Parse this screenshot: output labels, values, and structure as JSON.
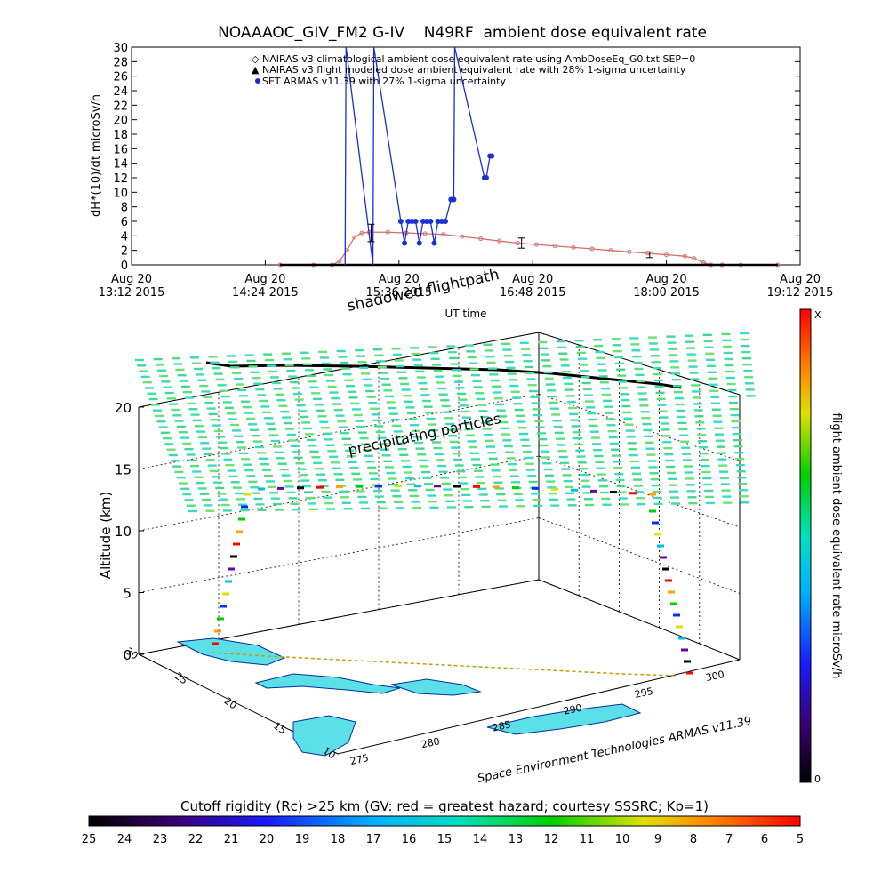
{
  "chart_data": [
    {
      "type": "line",
      "title": "NOAAAOC_GIV_FM2 G-IV    N49RF  ambient dose equivalent rate",
      "ylabel": "dH*(10)/dt microSv/h",
      "xlabel": "UT time",
      "ylim": [
        0,
        30
      ],
      "yticks": [
        "0",
        "2",
        "4",
        "6",
        "8",
        "10",
        "12",
        "14",
        "16",
        "18",
        "20",
        "22",
        "24",
        "26",
        "28",
        "30"
      ],
      "xticks": [
        {
          "t": 792,
          "line1": "Aug 20",
          "line2": "13:12 2015"
        },
        {
          "t": 864,
          "line1": "Aug 20",
          "line2": "14:24 2015"
        },
        {
          "t": 936,
          "line1": "Aug 20",
          "line2": "15:36 2015"
        },
        {
          "t": 1008,
          "line1": "Aug 20",
          "line2": "16:48 2015"
        },
        {
          "t": 1080,
          "line1": "Aug 20",
          "line2": "18:00 2015"
        },
        {
          "t": 1152,
          "line1": "Aug 20",
          "line2": "19:12 2015"
        }
      ],
      "xlim": [
        792,
        1152
      ],
      "legend": [
        "NAIRAS v3 climatological ambient dose equivalent rate using AmbDoseEq_G0.txt SEP=0",
        "NAIRAS v3 flight modeled dose ambient equivalent rate with 28% 1-sigma uncertainty",
        "SET ARMAS v11.39 with 27% 1-sigma uncertainty"
      ],
      "legend_position": "top-right",
      "series": [
        {
          "name": "NAIRAS v3 climatological ambient dose equivalent rate using AmbDoseEq_G0.txt SEP=0",
          "color": "#d47070",
          "x": [
            872,
            890,
            900,
            904,
            908,
            912,
            916,
            920,
            930,
            940,
            950,
            960,
            970,
            980,
            990,
            1000,
            1010,
            1020,
            1030,
            1040,
            1050,
            1060,
            1070,
            1080,
            1090,
            1095,
            1100,
            1104,
            1110,
            1120,
            1140
          ],
          "y": [
            0,
            0,
            0,
            0.5,
            2,
            3.8,
            4.4,
            4.5,
            4.5,
            4.4,
            4.3,
            4.2,
            3.9,
            3.6,
            3.3,
            3.0,
            2.8,
            2.6,
            2.4,
            2.2,
            2.0,
            1.8,
            1.6,
            1.4,
            1.2,
            0.9,
            0.3,
            0,
            0,
            0,
            0
          ]
        },
        {
          "name": "NAIRAS v3 flight modeled dose ambient equivalent rate with 28% 1-sigma uncertainty",
          "color": "#000000",
          "x": [
            872,
            890,
            910,
            930,
            950,
            970,
            990,
            1010,
            1030,
            1050,
            1070,
            1090,
            1110,
            1130,
            1140
          ],
          "y": [
            0,
            0,
            0,
            0,
            0,
            0,
            0,
            0,
            0,
            0,
            0,
            0,
            0,
            0,
            0
          ]
        },
        {
          "name": "SET ARMAS v11.39 with 27% 1-sigma uncertainty",
          "color": "#1a2fd6",
          "x": [
            907,
            907.5,
            922,
            922.5,
            937,
            939,
            941,
            943,
            945,
            947,
            949,
            951,
            953,
            955,
            957,
            959,
            961,
            964,
            965.5,
            966,
            982,
            983,
            985,
            986
          ],
          "y": [
            0,
            30,
            0,
            30,
            6,
            3,
            6,
            6,
            6,
            3,
            6,
            6,
            6,
            3,
            6,
            6,
            6,
            9,
            9,
            30,
            12,
            12,
            15,
            15
          ]
        }
      ],
      "error_bars": [
        {
          "x": 921,
          "low": 3.2,
          "high": 5.6
        },
        {
          "x": 1002,
          "low": 2.3,
          "high": 3.7
        },
        {
          "x": 1071,
          "low": 1.0,
          "high": 1.8
        }
      ]
    },
    {
      "type": "scatter",
      "subtype": "3d-trajectory",
      "zlabel": "Altitude (km)",
      "zticks": [
        "0",
        "5",
        "10",
        "15",
        "20"
      ],
      "lat_ticks": [
        "10",
        "15",
        "20",
        "25",
        "30"
      ],
      "lon_ticks": [
        "275",
        "280",
        "285",
        "290",
        "295",
        "300"
      ],
      "labels": {
        "shadow": "shadowed flightpath",
        "particles": "precipitating particles",
        "credit": "Space Environment Technologies ARMAS v11.39"
      },
      "flight_altitude_km": [
        0,
        1,
        2,
        3,
        4,
        5,
        6,
        7,
        8,
        9,
        10,
        11,
        12,
        12.5,
        13,
        13.2,
        13.2,
        13,
        12.9,
        12.8,
        12.5,
        12,
        11,
        10,
        9,
        8,
        7,
        6,
        5,
        4,
        3,
        2,
        1,
        0
      ]
    }
  ],
  "colorbar_right": {
    "label": "flight ambient dose equivalent rate microSv/h",
    "top_label": "X",
    "bottom_label": "0"
  },
  "colorbar_bottom": {
    "label": "Cutoff rigidity (Rc) >25 km (GV: red = greatest hazard; courtesy SSSRC; Kp=1)",
    "ticks": [
      "25",
      "24",
      "23",
      "22",
      "21",
      "20",
      "19",
      "18",
      "17",
      "16",
      "15",
      "14",
      "13",
      "12",
      "11",
      "10",
      "9",
      "8",
      "7",
      "6",
      "5"
    ]
  },
  "colors": {
    "nairas_clim": "#d47070",
    "armas": "#1a2fd6",
    "particles": "#3fe0a0",
    "land": "#5ce0e8"
  }
}
